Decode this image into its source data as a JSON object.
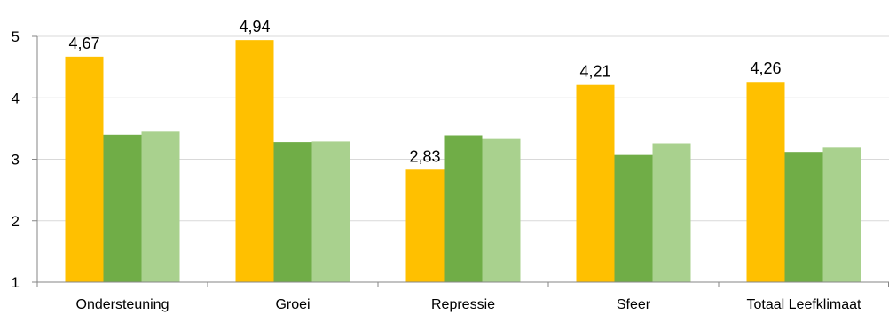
{
  "chart_data": {
    "type": "bar",
    "categories": [
      "Ondersteuning",
      "Groei",
      "Repressie",
      "Sfeer",
      "Totaal Leefklimaat"
    ],
    "series": [
      {
        "values": [
          4.67,
          4.94,
          2.83,
          4.21,
          4.26
        ],
        "color": "#FFC000",
        "data_labels": [
          "4,67",
          "4,94",
          "2,83",
          "4,21",
          "4,26"
        ]
      },
      {
        "values": [
          3.4,
          3.28,
          3.39,
          3.07,
          3.12
        ],
        "color": "#70AD47"
      },
      {
        "values": [
          3.45,
          3.29,
          3.33,
          3.26,
          3.19
        ],
        "color": "#A9D18E"
      }
    ],
    "ylim": [
      1,
      5
    ],
    "yticks": [
      "1",
      "2",
      "3",
      "4",
      "5"
    ],
    "grid": true,
    "gridline_color": "#d9d9d9",
    "axis_color": "#868686"
  }
}
